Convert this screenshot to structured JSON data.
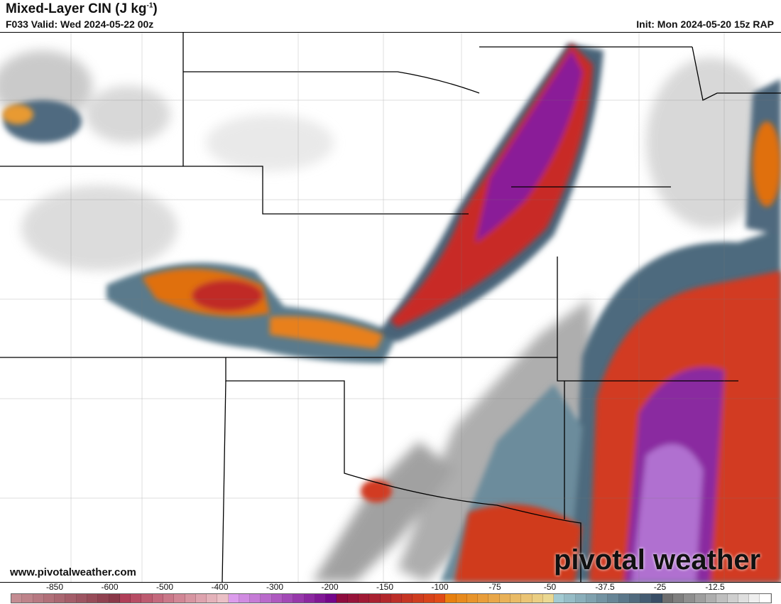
{
  "header": {
    "title": "Mixed-Layer CIN (J kg",
    "title_sup": "-1",
    "title_end": ")",
    "valid": "F033 Valid: Wed 2024-05-22 00z",
    "init": "Init: Mon 2024-05-20 15z RAP"
  },
  "footer": {
    "website": "www.pivotalweather.com",
    "brand": "pivotal weather"
  },
  "colorbar": {
    "labels": [
      "-850",
      "-600",
      "-500",
      "-400",
      "-300",
      "-200",
      "-150",
      "-100",
      "-75",
      "-50",
      "-37.5",
      "-25",
      "-12.5"
    ],
    "groups": [
      [
        "#c48c92",
        "#8a3848"
      ],
      [
        "#b03e58",
        "#ebc0c6"
      ],
      [
        "#dc9cec",
        "#74068a"
      ],
      [
        "#8e0c3e",
        "#e04a16"
      ],
      [
        "#e8800e",
        "#ead892"
      ],
      [
        "#a2cad2",
        "#384e66"
      ],
      [
        "#6e6e6e",
        "#ffffff"
      ]
    ]
  },
  "map": {
    "field": "mlcin",
    "background": "#ffffff",
    "border_color": "#000000"
  }
}
